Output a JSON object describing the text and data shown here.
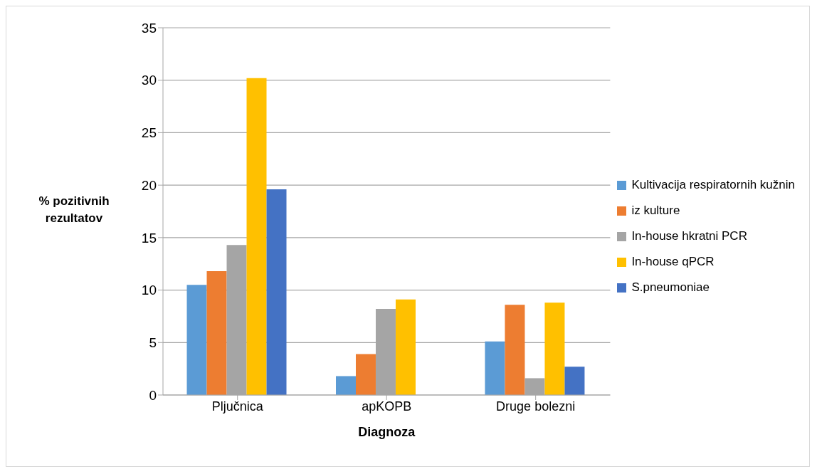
{
  "chart_data": {
    "type": "bar",
    "xlabel": "Diagnoza",
    "ylabel": "% pozitivnih rezultatov",
    "categories": [
      "Pljučnica",
      "apKOPB",
      "Druge bolezni"
    ],
    "series": [
      {
        "name": "Kultivacija respiratornih kužnin",
        "color": "#5b9bd5",
        "values": [
          10.5,
          1.8,
          5.1
        ]
      },
      {
        "name": "iz kulture",
        "color": "#ed7d31",
        "values": [
          11.8,
          3.9,
          8.6
        ]
      },
      {
        "name": "In-house hkratni PCR",
        "color": "#a5a5a5",
        "values": [
          14.3,
          8.2,
          1.6
        ]
      },
      {
        "name": "In-house qPCR",
        "color": "#ffc000",
        "values": [
          30.2,
          9.1,
          8.8
        ]
      },
      {
        "name": "S.pneumoniae",
        "color": "#4472c4",
        "values": [
          19.6,
          null,
          2.7
        ]
      }
    ],
    "ylim": [
      0,
      35
    ],
    "yticks": [
      0,
      5,
      10,
      15,
      20,
      25,
      30,
      35
    ],
    "grid": "y",
    "legend": "right"
  }
}
